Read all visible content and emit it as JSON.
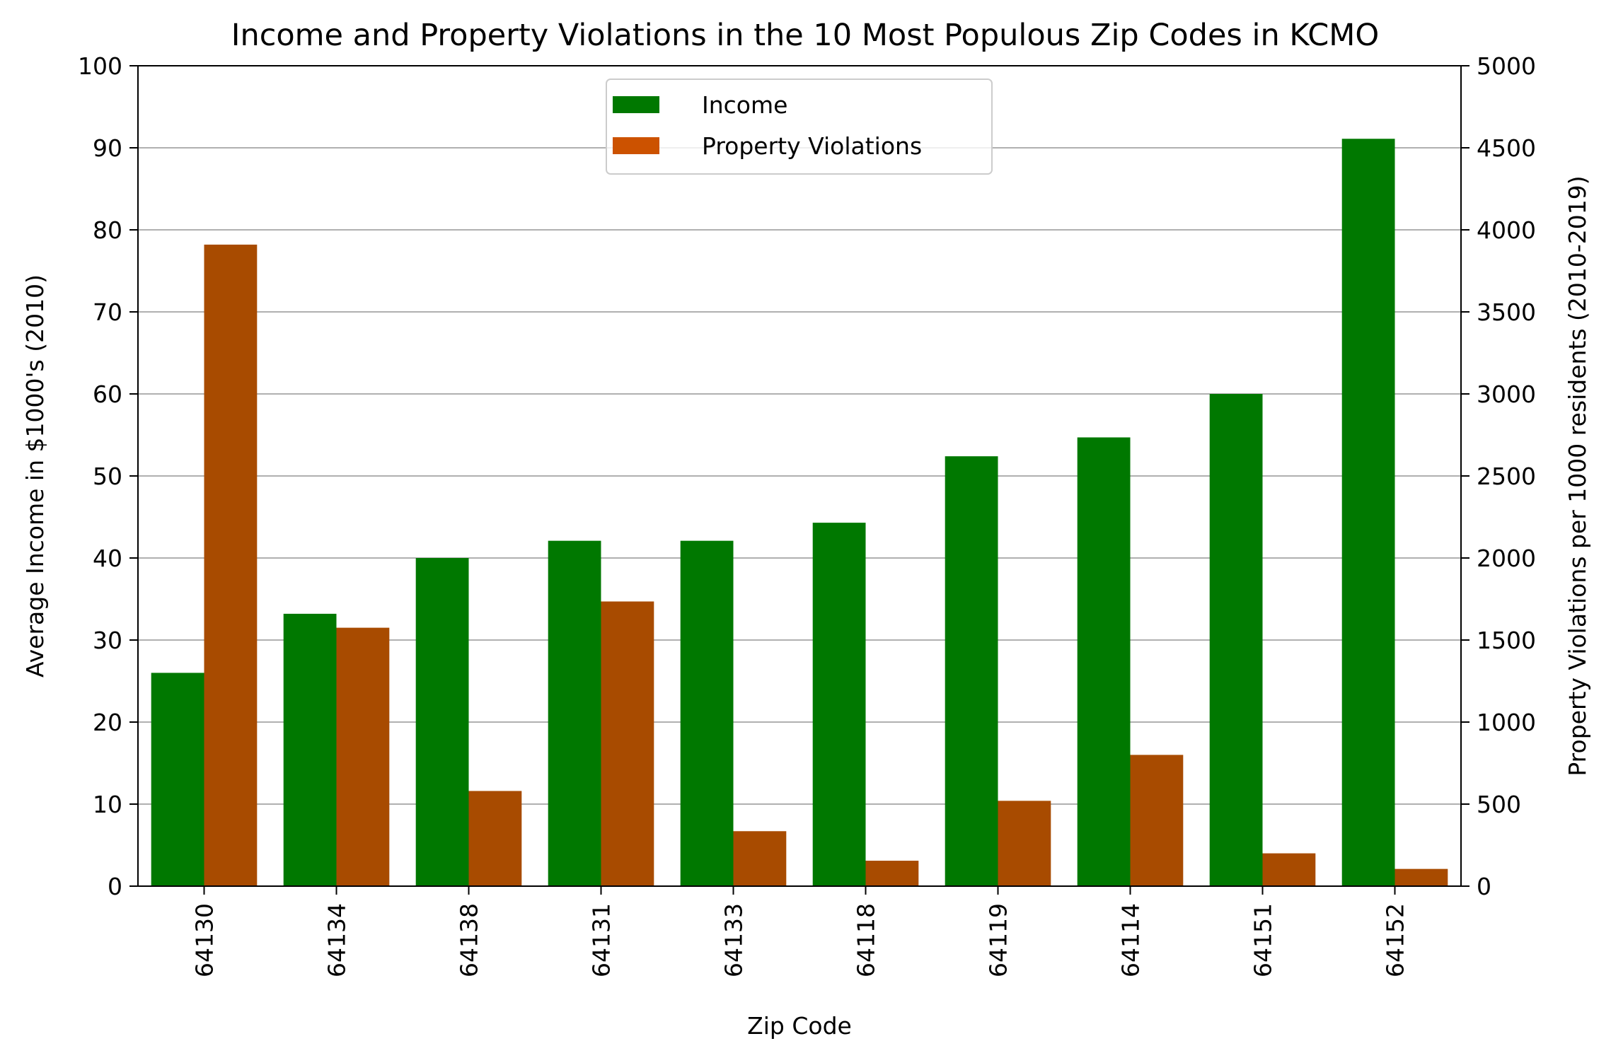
{
  "chart_data": {
    "type": "bar",
    "title": "Income and Property Violations in the 10 Most Populous Zip Codes in KCMO",
    "xlabel": "Zip Code",
    "ylabel_left": "Average Income in $1000's (2010)",
    "ylabel_right": "Property Violations per 1000 residents (2010-2019)",
    "categories": [
      "64130",
      "64134",
      "64138",
      "64131",
      "64133",
      "64118",
      "64119",
      "64114",
      "64151",
      "64152"
    ],
    "series": [
      {
        "name": "Income",
        "axis": "left",
        "color": "#007800",
        "values": [
          26.0,
          33.2,
          40.0,
          42.1,
          42.1,
          44.3,
          52.4,
          54.7,
          60.0,
          91.1
        ]
      },
      {
        "name": "Property Violations",
        "axis": "right",
        "color": "#a84b00",
        "legend_color": "#cc5200",
        "values": [
          3910,
          1575,
          580,
          1735,
          335,
          155,
          520,
          800,
          200,
          105
        ]
      }
    ],
    "ylim_left": [
      0,
      100
    ],
    "ylim_right": [
      0,
      5000
    ],
    "yticks_left": [
      "0",
      "10",
      "20",
      "30",
      "40",
      "50",
      "60",
      "70",
      "80",
      "90",
      "100"
    ],
    "yticks_right": [
      "0",
      "500",
      "1000",
      "1500",
      "2000",
      "2500",
      "3000",
      "3500",
      "4000",
      "4500",
      "5000"
    ],
    "grid": "horizontal",
    "legend_position": "upper-center"
  }
}
